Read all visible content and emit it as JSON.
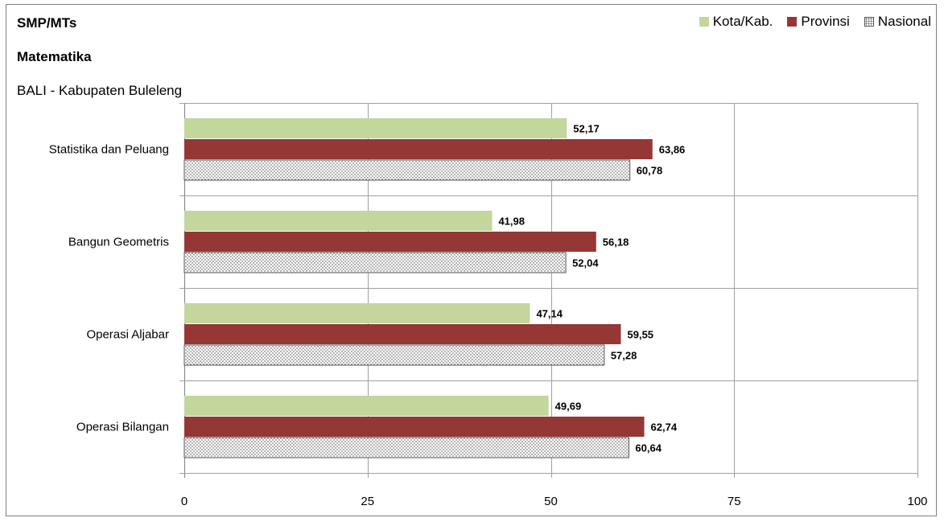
{
  "titles": {
    "line1": "SMP/MTs",
    "line2": "Matematika",
    "line3": "BALI - Kabupaten Buleleng"
  },
  "legend": {
    "kota": "Kota/Kab.",
    "provinsi": "Provinsi",
    "nasional": "Nasional"
  },
  "colors": {
    "kota": "#c3d69b",
    "provinsi": "#953735",
    "nasional_pattern": "dotted",
    "grid": "#999999"
  },
  "chart_data": {
    "type": "bar",
    "orientation": "horizontal",
    "categories": [
      "Statistika dan Peluang",
      "Bangun Geometris",
      "Operasi Aljabar",
      "Operasi Bilangan"
    ],
    "series": [
      {
        "name": "Kota/Kab.",
        "values": [
          52.17,
          41.98,
          47.14,
          49.69
        ]
      },
      {
        "name": "Provinsi",
        "values": [
          63.86,
          56.18,
          59.55,
          62.74
        ]
      },
      {
        "name": "Nasional",
        "values": [
          60.78,
          52.04,
          57.28,
          60.64
        ]
      }
    ],
    "value_labels": [
      [
        "52,17",
        "41,98",
        "47,14",
        "49,69"
      ],
      [
        "63,86",
        "56,18",
        "59,55",
        "62,74"
      ],
      [
        "60,78",
        "52,04",
        "57,28",
        "60,64"
      ]
    ],
    "xlim": [
      0,
      100
    ],
    "xticks": [
      0,
      25,
      50,
      75,
      100
    ],
    "xtick_labels": [
      "0",
      "25",
      "50",
      "75",
      "100"
    ],
    "grid": true,
    "legend_position": "top-right"
  }
}
